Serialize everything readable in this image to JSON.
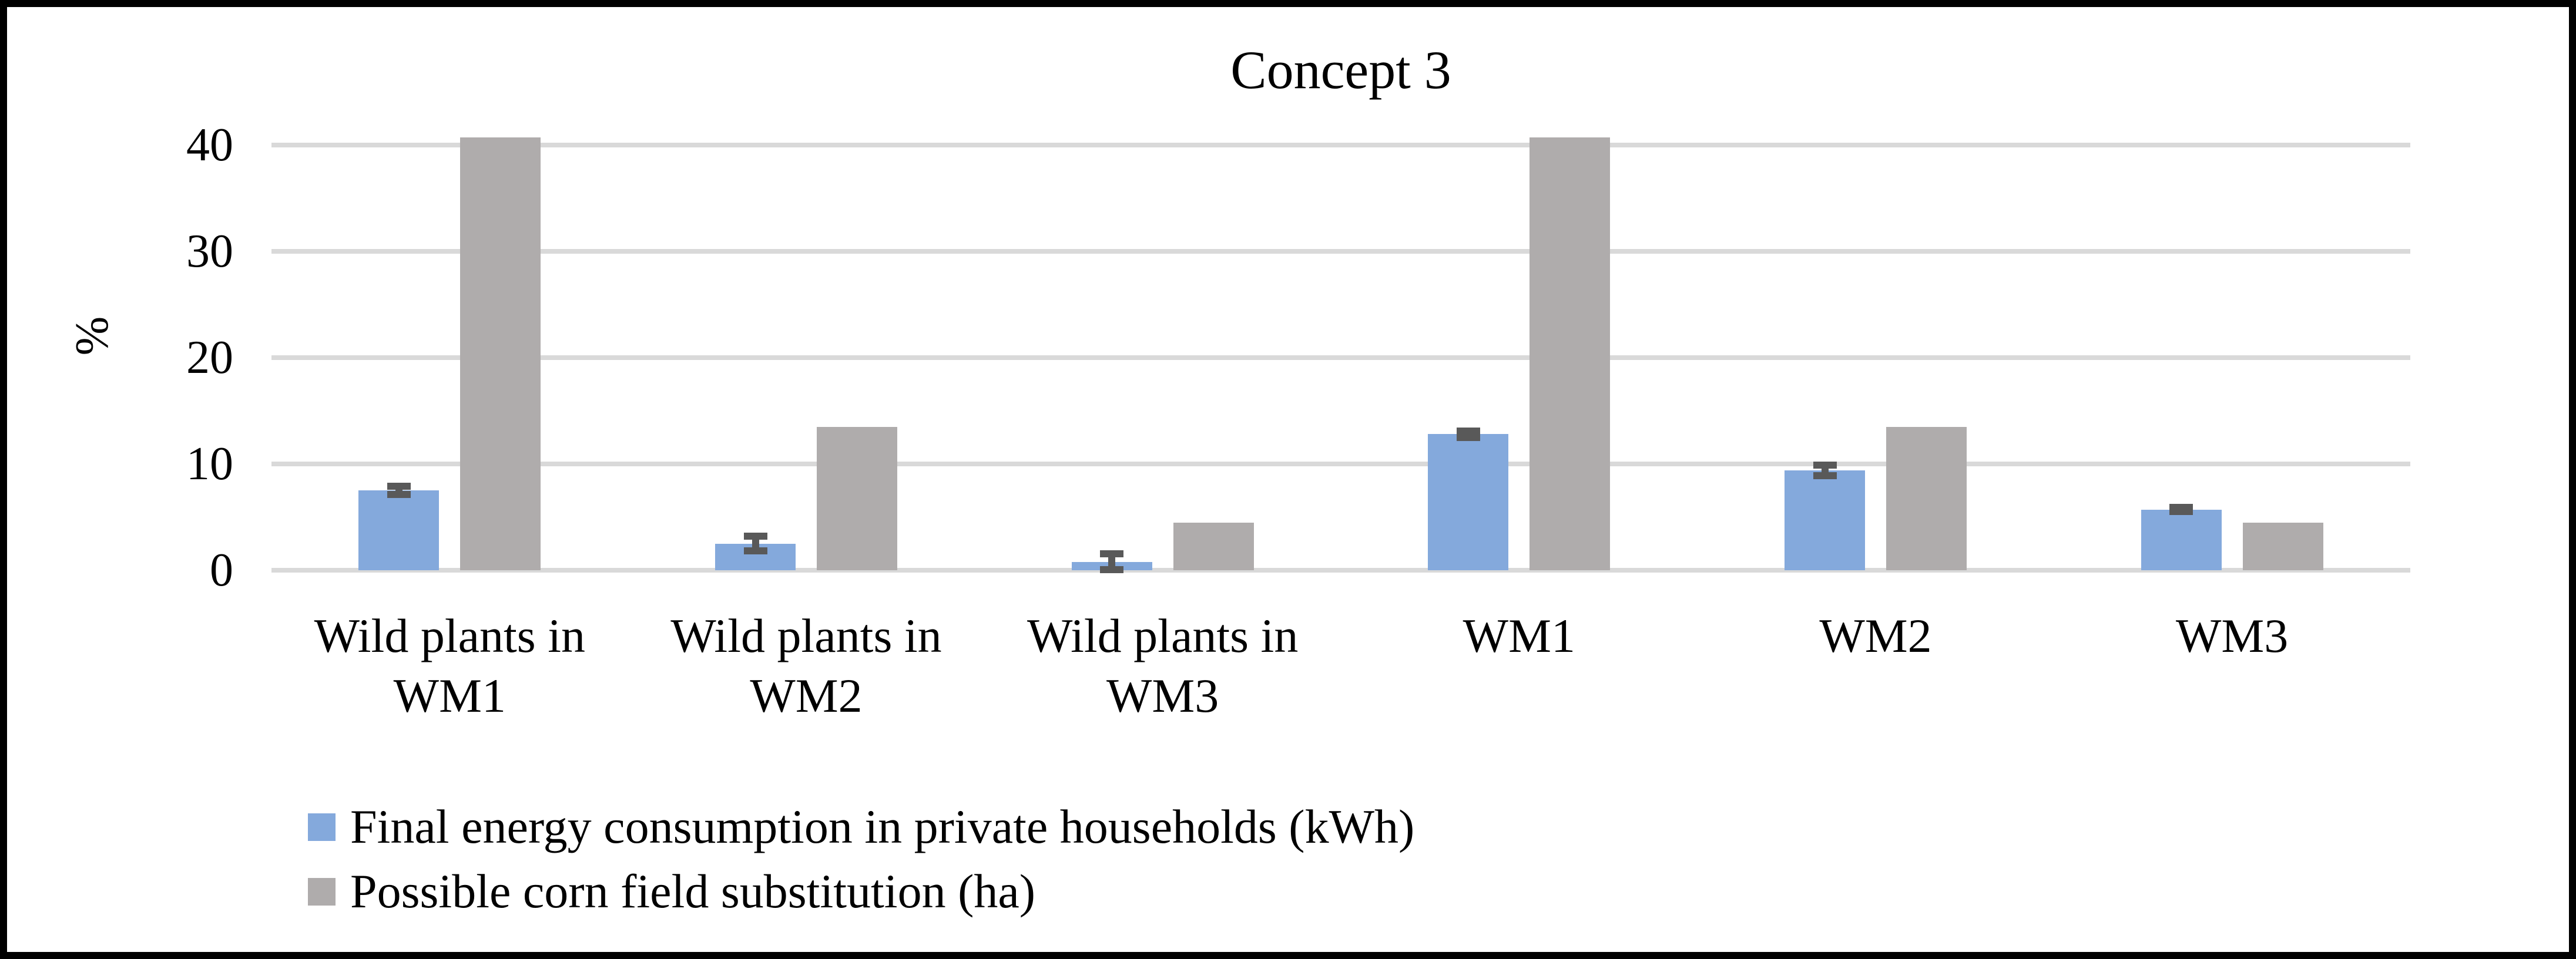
{
  "figure": {
    "title": "Concept 3"
  },
  "axes": {
    "y_label": "%"
  },
  "legend": {
    "items": [
      {
        "label": "Final energy consumption in private households (kWh)",
        "color": "#84A9DC"
      },
      {
        "label": "Possible corn field substitution (ha)",
        "color": "#AFACAC"
      }
    ]
  },
  "chart_data": {
    "type": "bar",
    "title": "Concept 3",
    "xlabel": "",
    "ylabel": "%",
    "ylim": [
      0,
      44
    ],
    "yticks": [
      0,
      10,
      20,
      30,
      40
    ],
    "grid": true,
    "legend_position": "bottom-left",
    "categories": [
      "Wild plants in WM1",
      "Wild plants in WM2",
      "Wild plants in WM3",
      "WM1",
      "WM2",
      "WM3"
    ],
    "category_lines": [
      [
        "Wild plants in",
        "WM1"
      ],
      [
        "Wild plants in",
        "WM2"
      ],
      [
        "Wild plants in",
        "WM3"
      ],
      [
        "WM1"
      ],
      [
        "WM2"
      ],
      [
        "WM3"
      ]
    ],
    "series": [
      {
        "name": "Final energy consumption in private households (kWh)",
        "color": "#84A9DC",
        "values": [
          7.5,
          2.5,
          0.8,
          12.8,
          9.4,
          5.7
        ],
        "error_bars": [
          0.4,
          0.7,
          0.75,
          0.3,
          0.5,
          0.2
        ]
      },
      {
        "name": "Possible corn field substitution (ha)",
        "color": "#AFACAC",
        "values": [
          40.7,
          13.5,
          4.5,
          40.7,
          13.5,
          4.5
        ],
        "error_bars": null
      }
    ],
    "style_colors": {
      "gridline": "#D9D9D9",
      "error_bar": "#595959",
      "frame_border": "#000000",
      "text": "#000000"
    }
  }
}
